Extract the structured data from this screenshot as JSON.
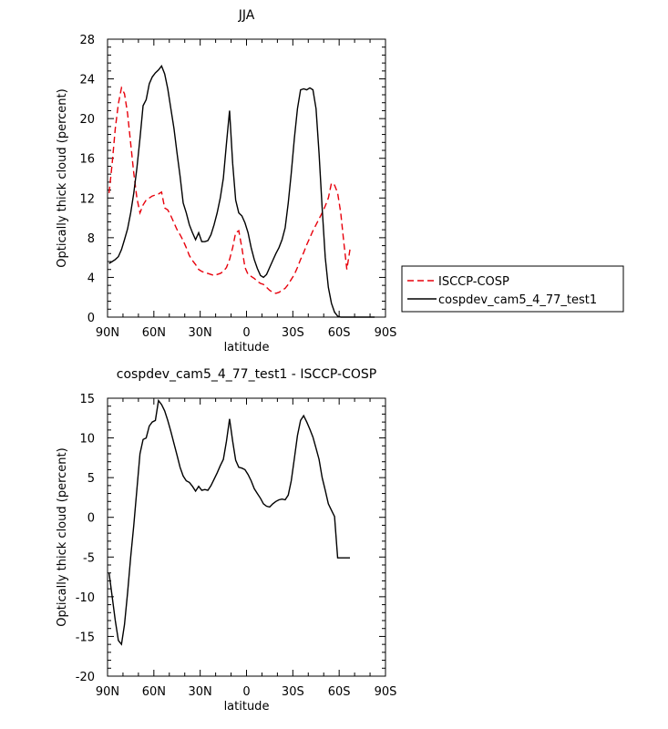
{
  "chart_data": [
    {
      "type": "line",
      "title": "JJA",
      "xlabel": "latitude",
      "ylabel": "Optically thick cloud (percent)",
      "xlim": [
        90,
        -90
      ],
      "ylim": [
        0,
        28
      ],
      "xtick_values": [
        90,
        60,
        30,
        0,
        -30,
        -60,
        -90
      ],
      "xtick_labels": [
        "90N",
        "60N",
        "30N",
        "0",
        "30S",
        "60S",
        "90S"
      ],
      "ytick_values": [
        0,
        4,
        8,
        12,
        16,
        20,
        24,
        28
      ],
      "ytick_labels": [
        "0",
        "4",
        "8",
        "12",
        "16",
        "20",
        "24",
        "28"
      ],
      "legend": "right",
      "series": [
        {
          "name": "ISCCP-COSP",
          "color": "#e8000b",
          "dash": "dashed",
          "x": [
            89,
            87,
            85,
            83,
            81,
            79,
            77,
            75,
            73,
            71,
            69,
            67,
            65,
            63,
            61,
            59,
            57,
            55,
            53,
            51,
            49,
            47,
            45,
            43,
            41,
            39,
            37,
            35,
            33,
            31,
            29,
            27,
            25,
            23,
            21,
            19,
            17,
            15,
            13,
            11,
            9,
            7,
            5,
            3,
            1,
            -1,
            -3,
            -5,
            -7,
            -9,
            -11,
            -13,
            -15,
            -17,
            -19,
            -21,
            -23,
            -25,
            -27,
            -29,
            -31,
            -33,
            -35,
            -37,
            -39,
            -41,
            -43,
            -45,
            -47,
            -49,
            -51,
            -53,
            -55,
            -57,
            -59,
            -61,
            -63,
            -65,
            -67
          ],
          "y": [
            12.5,
            15.5,
            19.0,
            21.5,
            23.1,
            22.5,
            20.5,
            17.5,
            14.5,
            12.0,
            10.5,
            11.3,
            11.8,
            12.0,
            12.2,
            12.3,
            12.4,
            12.6,
            11.0,
            10.8,
            10.2,
            9.5,
            8.8,
            8.3,
            7.7,
            7.0,
            6.2,
            5.7,
            5.3,
            4.8,
            4.6,
            4.5,
            4.4,
            4.3,
            4.2,
            4.3,
            4.4,
            4.6,
            5.0,
            5.8,
            7.0,
            8.5,
            8.7,
            7.0,
            5.0,
            4.3,
            4.1,
            3.9,
            3.6,
            3.4,
            3.3,
            3.0,
            2.7,
            2.5,
            2.4,
            2.5,
            2.7,
            2.9,
            3.3,
            3.8,
            4.3,
            5.0,
            5.8,
            6.5,
            7.3,
            8.0,
            8.7,
            9.3,
            9.9,
            10.5,
            11.2,
            12.0,
            13.5,
            13.3,
            12.5,
            10.5,
            7.5,
            4.8,
            6.8
          ]
        },
        {
          "name": "cospdev_cam5_4_77_test1",
          "color": "#000000",
          "dash": "solid",
          "x": [
            89,
            87,
            85,
            83,
            81,
            79,
            77,
            75,
            73,
            71,
            69,
            67,
            65,
            63,
            61,
            59,
            57,
            55,
            53,
            51,
            49,
            47,
            45,
            43,
            41,
            39,
            37,
            35,
            33,
            31,
            29,
            27,
            25,
            23,
            21,
            19,
            17,
            15,
            13,
            11,
            9,
            7,
            5,
            3,
            1,
            -1,
            -3,
            -5,
            -7,
            -9,
            -11,
            -13,
            -15,
            -17,
            -19,
            -21,
            -23,
            -25,
            -27,
            -29,
            -31,
            -33,
            -35,
            -37,
            -39,
            -41,
            -43,
            -45,
            -47,
            -49,
            -51,
            -53,
            -55,
            -57,
            -59,
            -61,
            -63,
            -65,
            -67,
            -69,
            -71,
            -73,
            -75,
            -77,
            -79,
            -81,
            -83
          ],
          "y": [
            5.4,
            5.6,
            5.8,
            6.1,
            6.8,
            7.8,
            8.9,
            10.5,
            12.5,
            15.0,
            18.0,
            21.3,
            21.9,
            23.5,
            24.2,
            24.6,
            24.9,
            25.3,
            24.5,
            23.0,
            21.0,
            19.0,
            16.5,
            14.2,
            11.5,
            10.5,
            9.3,
            8.5,
            7.8,
            8.5,
            7.6,
            7.6,
            7.7,
            8.3,
            9.3,
            10.5,
            12.0,
            14.0,
            17.5,
            20.8,
            15.5,
            11.8,
            10.5,
            10.2,
            9.5,
            8.5,
            7.0,
            5.8,
            4.9,
            4.2,
            4.0,
            4.3,
            5.0,
            5.7,
            6.4,
            7.0,
            7.8,
            9.0,
            11.5,
            14.5,
            18.0,
            21.0,
            22.9,
            23.0,
            22.9,
            23.1,
            22.9,
            21.0,
            16.5,
            11.0,
            6.0,
            3.0,
            1.4,
            0.5,
            0.1,
            0.0,
            0.0,
            0.0,
            0.0,
            0.0,
            0.0,
            0.0,
            0.0,
            0.0,
            0.0,
            0.0,
            0.0
          ]
        }
      ]
    },
    {
      "type": "line",
      "title": "cospdev_cam5_4_77_test1 - ISCCP-COSP",
      "xlabel": "latitude",
      "ylabel": "Optically thick cloud (percent)",
      "xlim": [
        90,
        -90
      ],
      "ylim": [
        -20,
        15
      ],
      "xtick_values": [
        90,
        60,
        30,
        0,
        -30,
        -60,
        -90
      ],
      "xtick_labels": [
        "90N",
        "60N",
        "30N",
        "0",
        "30S",
        "60S",
        "90S"
      ],
      "ytick_values": [
        -20,
        -15,
        -10,
        -5,
        0,
        5,
        10,
        15
      ],
      "ytick_labels": [
        "-20",
        "-15",
        "-10",
        "-5",
        "0",
        "5",
        "10",
        "15"
      ],
      "series": [
        {
          "color": "#000000",
          "dash": "solid",
          "x": [
            89,
            87,
            85,
            83,
            81,
            79,
            77,
            75,
            73,
            71,
            69,
            67,
            65,
            63,
            61,
            59,
            57,
            55,
            53,
            51,
            49,
            47,
            45,
            43,
            41,
            39,
            37,
            35,
            33,
            31,
            29,
            27,
            25,
            23,
            21,
            19,
            17,
            15,
            13,
            11,
            9,
            7,
            5,
            3,
            1,
            -1,
            -3,
            -5,
            -7,
            -9,
            -11,
            -13,
            -15,
            -17,
            -19,
            -21,
            -23,
            -25,
            -27,
            -29,
            -31,
            -33,
            -35,
            -37,
            -39,
            -41,
            -43,
            -45,
            -47,
            -49,
            -51,
            -53,
            -55,
            -57,
            -59,
            -61,
            -63,
            -65,
            -67
          ],
          "y": [
            -7.0,
            -10.0,
            -13.0,
            -15.5,
            -16.0,
            -13.5,
            -9.5,
            -5.0,
            -1.0,
            3.5,
            8.0,
            9.8,
            10.0,
            11.5,
            12.0,
            12.2,
            14.7,
            14.2,
            13.4,
            12.2,
            10.8,
            9.3,
            7.8,
            6.3,
            5.2,
            4.6,
            4.4,
            3.9,
            3.3,
            3.9,
            3.4,
            3.5,
            3.4,
            4.0,
            4.8,
            5.6,
            6.5,
            7.3,
            9.6,
            12.4,
            9.6,
            7.2,
            6.3,
            6.2,
            6.0,
            5.4,
            4.6,
            3.6,
            3.0,
            2.4,
            1.7,
            1.4,
            1.3,
            1.7,
            2.0,
            2.2,
            2.3,
            2.2,
            2.8,
            4.6,
            7.4,
            10.3,
            12.2,
            12.8,
            12.0,
            11.1,
            10.1,
            8.7,
            7.3,
            5.0,
            3.4,
            1.7,
            0.9,
            0.1,
            -5.1,
            -5.1,
            -5.1,
            -5.1,
            -5.1
          ]
        }
      ]
    }
  ]
}
